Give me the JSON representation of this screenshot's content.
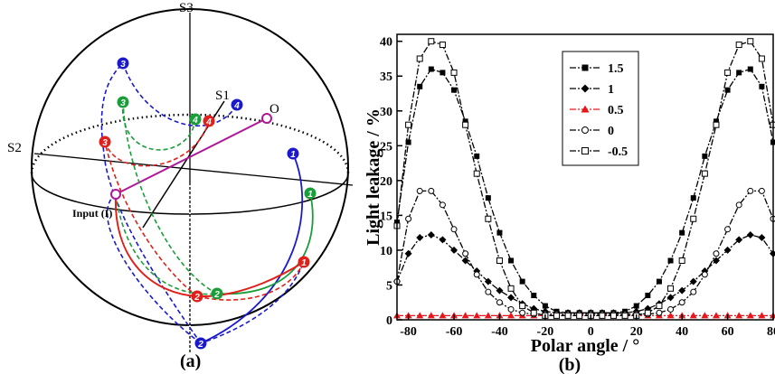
{
  "panel_a": {
    "label": "(a)",
    "axis_labels": {
      "s1": "S1",
      "s2": "S2",
      "s3": "S3"
    },
    "point_o": "O",
    "point_input": "Input (I)",
    "trajectory_colors": {
      "blue": "#1a1acc",
      "green": "#1a9e3a",
      "red": "#e0201a",
      "magenta": "#b0189a"
    },
    "markers": [
      {
        "n": "1",
        "color": "blue"
      },
      {
        "n": "2",
        "color": "blue"
      },
      {
        "n": "3",
        "color": "blue"
      },
      {
        "n": "4",
        "color": "blue"
      },
      {
        "n": "1",
        "color": "green"
      },
      {
        "n": "2",
        "color": "green"
      },
      {
        "n": "3",
        "color": "green"
      },
      {
        "n": "4",
        "color": "green"
      },
      {
        "n": "1",
        "color": "red"
      },
      {
        "n": "2",
        "color": "red"
      },
      {
        "n": "3",
        "color": "red"
      },
      {
        "n": "4",
        "color": "red"
      }
    ]
  },
  "chart_data": {
    "type": "line",
    "panel_label": "(b)",
    "xlabel": "Polar angle / °",
    "ylabel": "Light leakage / %",
    "xlim": [
      -85,
      80
    ],
    "ylim": [
      0,
      41
    ],
    "xticks": [
      -80,
      -60,
      -40,
      -20,
      0,
      20,
      40,
      60,
      80
    ],
    "yticks": [
      0,
      5,
      10,
      15,
      20,
      25,
      30,
      35,
      40
    ],
    "legend_position": "top-center",
    "x": [
      -85,
      -80,
      -75,
      -70,
      -65,
      -60,
      -55,
      -50,
      -45,
      -40,
      -35,
      -30,
      -25,
      -20,
      -15,
      -10,
      -5,
      0,
      5,
      10,
      15,
      20,
      25,
      30,
      35,
      40,
      45,
      50,
      55,
      60,
      65,
      70,
      75,
      80
    ],
    "series": [
      {
        "name": "1.5",
        "marker": "square-filled",
        "color": "#000000",
        "values": [
          14.0,
          25.5,
          33.5,
          36.0,
          35.5,
          33.0,
          28.5,
          23.5,
          17.5,
          12.5,
          8.5,
          5.5,
          3.5,
          2.0,
          1.2,
          1.0,
          1.0,
          1.0,
          1.0,
          1.0,
          1.2,
          2.0,
          3.5,
          5.5,
          8.5,
          12.5,
          17.5,
          23.5,
          28.5,
          33.0,
          35.5,
          36.0,
          33.5,
          25.5
        ]
      },
      {
        "name": "1",
        "marker": "diamond-filled",
        "color": "#000000",
        "values": [
          5.5,
          9.5,
          11.8,
          12.2,
          11.5,
          10.0,
          8.5,
          7.0,
          5.5,
          4.2,
          3.2,
          2.3,
          1.6,
          1.2,
          1.0,
          1.0,
          1.0,
          1.0,
          1.0,
          1.0,
          1.0,
          1.2,
          1.6,
          2.3,
          3.2,
          4.2,
          5.5,
          7.0,
          8.5,
          10.0,
          11.5,
          12.2,
          11.8,
          9.5
        ]
      },
      {
        "name": "0.5",
        "marker": "triangle-filled",
        "color": "#e8161a",
        "values": [
          0.6,
          0.6,
          0.6,
          0.6,
          0.6,
          0.6,
          0.6,
          0.6,
          0.6,
          0.6,
          0.6,
          0.6,
          0.6,
          0.6,
          0.6,
          0.6,
          0.6,
          0.6,
          0.6,
          0.6,
          0.6,
          0.6,
          0.6,
          0.6,
          0.6,
          0.6,
          0.6,
          0.6,
          0.6,
          0.6,
          0.6,
          0.6,
          0.6,
          0.6
        ]
      },
      {
        "name": "0",
        "marker": "circle-open",
        "color": "#000000",
        "values": [
          5.5,
          14.5,
          18.5,
          18.5,
          16.5,
          13.0,
          9.5,
          6.5,
          4.0,
          2.5,
          1.5,
          1.0,
          0.8,
          0.8,
          0.8,
          0.8,
          0.8,
          0.8,
          0.8,
          0.8,
          0.8,
          0.8,
          0.8,
          1.0,
          1.5,
          2.5,
          4.0,
          6.5,
          9.5,
          13.0,
          16.5,
          18.5,
          18.5,
          14.5
        ]
      },
      {
        "name": "-0.5",
        "marker": "square-open",
        "color": "#000000",
        "values": [
          13.5,
          28.0,
          37.5,
          40.0,
          39.5,
          35.5,
          28.0,
          21.0,
          14.5,
          8.5,
          4.5,
          2.0,
          1.0,
          0.6,
          0.6,
          0.6,
          0.6,
          0.6,
          0.6,
          0.6,
          0.6,
          0.6,
          1.0,
          2.0,
          4.5,
          8.5,
          14.5,
          21.0,
          28.0,
          35.5,
          39.5,
          40.0,
          37.5,
          28.0
        ]
      }
    ]
  }
}
